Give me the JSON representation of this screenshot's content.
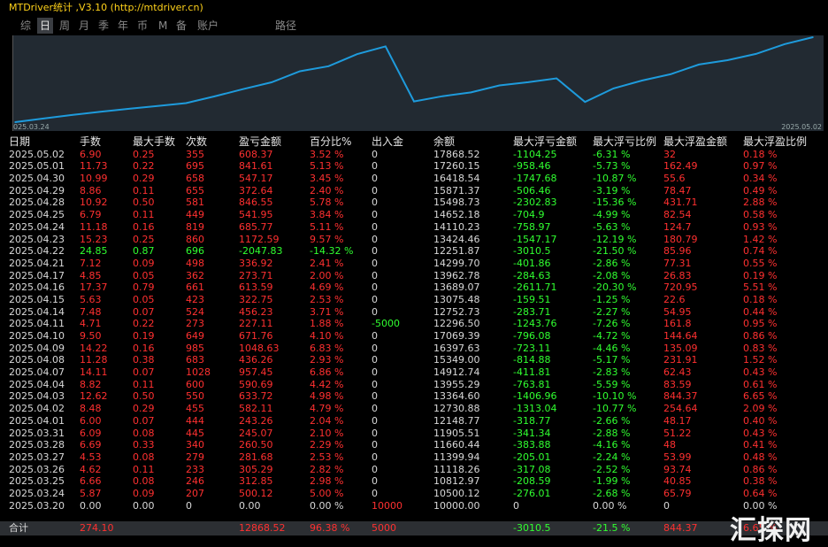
{
  "window": {
    "title": "MTDriver统计 ,V3.10 (http://mtdriver.cn)"
  },
  "tabs": [
    {
      "label": "综",
      "active": false
    },
    {
      "label": "日",
      "active": true
    },
    {
      "label": "周",
      "active": false
    },
    {
      "label": "月",
      "active": false
    },
    {
      "label": "季",
      "active": false
    },
    {
      "label": "年",
      "active": false
    },
    {
      "label": "币",
      "active": false
    },
    {
      "label": "M",
      "active": false
    },
    {
      "label": "备",
      "active": false
    },
    {
      "label": "账户",
      "active": false
    },
    {
      "label": "路径",
      "active": false
    }
  ],
  "chart": {
    "start_label": "025.03.24",
    "end_label": "2025.05.02",
    "line_color": "#1e9bdc"
  },
  "chart_data": {
    "type": "line",
    "x": [
      "2025.03.20",
      "2025.03.24",
      "2025.03.25",
      "2025.03.26",
      "2025.03.27",
      "2025.03.28",
      "2025.03.31",
      "2025.04.01",
      "2025.04.02",
      "2025.04.03",
      "2025.04.04",
      "2025.04.07",
      "2025.04.08",
      "2025.04.09",
      "2025.04.10",
      "2025.04.11",
      "2025.04.14",
      "2025.04.15",
      "2025.04.16",
      "2025.04.17",
      "2025.04.21",
      "2025.04.22",
      "2025.04.23",
      "2025.04.24",
      "2025.04.25",
      "2025.04.28",
      "2025.04.29",
      "2025.04.30",
      "2025.05.01",
      "2025.05.02"
    ],
    "values": [
      10000.0,
      10500.12,
      10812.97,
      11118.26,
      11399.94,
      11660.44,
      11905.51,
      12148.77,
      12730.88,
      13364.6,
      13955.29,
      14912.74,
      15349.0,
      16397.63,
      17069.39,
      12296.5,
      12752.73,
      13075.48,
      13689.07,
      13962.78,
      14299.7,
      12251.87,
      13424.46,
      14110.23,
      14652.18,
      15498.73,
      15871.37,
      16418.54,
      17260.15,
      17868.52
    ]
  },
  "table": {
    "headers": [
      "日期",
      "手数",
      "最大手数",
      "次数",
      "盈亏金额",
      "百分比%",
      "出入金",
      "余额",
      "最大浮亏金额",
      "最大浮亏比例",
      "最大浮盈金额",
      "最大浮盈比例"
    ],
    "rows": [
      [
        "2025.05.02",
        "6.90",
        "0.25",
        "355",
        "608.37",
        "3.52 %",
        "0",
        "17868.52",
        "-1104.25",
        "-6.31 %",
        "32",
        "0.18 %"
      ],
      [
        "2025.05.01",
        "11.73",
        "0.22",
        "695",
        "841.61",
        "5.13 %",
        "0",
        "17260.15",
        "-958.46",
        "-5.73 %",
        "162.49",
        "0.97 %"
      ],
      [
        "2025.04.30",
        "10.99",
        "0.29",
        "658",
        "547.17",
        "3.45 %",
        "0",
        "16418.54",
        "-1747.68",
        "-10.87 %",
        "55.6",
        "0.34 %"
      ],
      [
        "2025.04.29",
        "8.86",
        "0.11",
        "655",
        "372.64",
        "2.40 %",
        "0",
        "15871.37",
        "-506.46",
        "-3.19 %",
        "78.47",
        "0.49 %"
      ],
      [
        "2025.04.28",
        "10.92",
        "0.50",
        "581",
        "846.55",
        "5.78 %",
        "0",
        "15498.73",
        "-2302.83",
        "-15.36 %",
        "431.71",
        "2.88 %"
      ],
      [
        "2025.04.25",
        "6.79",
        "0.11",
        "449",
        "541.95",
        "3.84 %",
        "0",
        "14652.18",
        "-704.9",
        "-4.99 %",
        "82.54",
        "0.58 %"
      ],
      [
        "2025.04.24",
        "11.18",
        "0.16",
        "819",
        "685.77",
        "5.11 %",
        "0",
        "14110.23",
        "-758.97",
        "-5.63 %",
        "124.7",
        "0.93 %"
      ],
      [
        "2025.04.23",
        "15.23",
        "0.25",
        "860",
        "1172.59",
        "9.57 %",
        "0",
        "13424.46",
        "-1547.17",
        "-12.19 %",
        "180.79",
        "1.42 %"
      ],
      [
        "2025.04.22",
        "24.85",
        "0.87",
        "696",
        "-2047.83",
        "-14.32 %",
        "0",
        "12251.87",
        "-3010.5",
        "-21.50 %",
        "85.96",
        "0.74 %"
      ],
      [
        "2025.04.21",
        "7.12",
        "0.09",
        "498",
        "336.92",
        "2.41 %",
        "0",
        "14299.70",
        "-401.86",
        "-2.86 %",
        "77.31",
        "0.55 %"
      ],
      [
        "2025.04.17",
        "4.85",
        "0.05",
        "362",
        "273.71",
        "2.00 %",
        "0",
        "13962.78",
        "-284.63",
        "-2.08 %",
        "26.83",
        "0.19 %"
      ],
      [
        "2025.04.16",
        "17.37",
        "0.79",
        "661",
        "613.59",
        "4.69 %",
        "0",
        "13689.07",
        "-2611.71",
        "-20.30 %",
        "720.95",
        "5.51 %"
      ],
      [
        "2025.04.15",
        "5.63",
        "0.05",
        "423",
        "322.75",
        "2.53 %",
        "0",
        "13075.48",
        "-159.51",
        "-1.25 %",
        "22.6",
        "0.18 %"
      ],
      [
        "2025.04.14",
        "7.48",
        "0.07",
        "524",
        "456.23",
        "3.71 %",
        "0",
        "12752.73",
        "-283.71",
        "-2.27 %",
        "54.95",
        "0.44 %"
      ],
      [
        "2025.04.11",
        "4.71",
        "0.22",
        "273",
        "227.11",
        "1.88 %",
        "-5000",
        "12296.50",
        "-1243.76",
        "-7.26 %",
        "161.8",
        "0.95 %"
      ],
      [
        "2025.04.10",
        "9.50",
        "0.19",
        "649",
        "671.76",
        "4.10 %",
        "0",
        "17069.39",
        "-796.08",
        "-4.72 %",
        "144.64",
        "0.86 %"
      ],
      [
        "2025.04.09",
        "14.22",
        "0.16",
        "985",
        "1048.63",
        "6.83 %",
        "0",
        "16397.63",
        "-723.11",
        "-4.46 %",
        "135.09",
        "0.83 %"
      ],
      [
        "2025.04.08",
        "11.28",
        "0.38",
        "683",
        "436.26",
        "2.93 %",
        "0",
        "15349.00",
        "-814.88",
        "-5.17 %",
        "231.91",
        "1.52 %"
      ],
      [
        "2025.04.07",
        "14.11",
        "0.07",
        "1028",
        "957.45",
        "6.86 %",
        "0",
        "14912.74",
        "-411.81",
        "-2.83 %",
        "62.43",
        "0.43 %"
      ],
      [
        "2025.04.04",
        "8.82",
        "0.11",
        "600",
        "590.69",
        "4.42 %",
        "0",
        "13955.29",
        "-763.81",
        "-5.59 %",
        "83.59",
        "0.61 %"
      ],
      [
        "2025.04.03",
        "12.62",
        "0.50",
        "550",
        "633.72",
        "4.98 %",
        "0",
        "13364.60",
        "-1406.96",
        "-10.10 %",
        "844.37",
        "6.65 %"
      ],
      [
        "2025.04.02",
        "8.48",
        "0.29",
        "455",
        "582.11",
        "4.79 %",
        "0",
        "12730.88",
        "-1313.04",
        "-10.77 %",
        "254.64",
        "2.09 %"
      ],
      [
        "2025.04.01",
        "6.00",
        "0.07",
        "444",
        "243.26",
        "2.04 %",
        "0",
        "12148.77",
        "-318.77",
        "-2.66 %",
        "48.17",
        "0.40 %"
      ],
      [
        "2025.03.31",
        "6.09",
        "0.08",
        "445",
        "245.07",
        "2.10 %",
        "0",
        "11905.51",
        "-341.34",
        "-2.88 %",
        "51.22",
        "0.43 %"
      ],
      [
        "2025.03.28",
        "6.69",
        "0.33",
        "340",
        "260.50",
        "2.29 %",
        "0",
        "11660.44",
        "-383.88",
        "-4.16 %",
        "48",
        "0.41 %"
      ],
      [
        "2025.03.27",
        "4.53",
        "0.08",
        "279",
        "281.68",
        "2.53 %",
        "0",
        "11399.94",
        "-205.01",
        "-2.24 %",
        "53.99",
        "0.48 %"
      ],
      [
        "2025.03.26",
        "4.62",
        "0.11",
        "233",
        "305.29",
        "2.82 %",
        "0",
        "11118.26",
        "-317.08",
        "-2.52 %",
        "93.74",
        "0.86 %"
      ],
      [
        "2025.03.25",
        "6.66",
        "0.08",
        "246",
        "312.85",
        "2.98 %",
        "0",
        "10812.97",
        "-208.59",
        "-1.99 %",
        "40.85",
        "0.38 %"
      ],
      [
        "2025.03.24",
        "5.87",
        "0.09",
        "207",
        "500.12",
        "5.00 %",
        "0",
        "10500.12",
        "-276.01",
        "-2.68 %",
        "65.79",
        "0.64 %"
      ],
      [
        "2025.03.20",
        "0.00",
        "0.00",
        "0",
        "0.00",
        "0.00 %",
        "10000",
        "10000.00",
        "0",
        "0.00 %",
        "0",
        "0.00 %"
      ]
    ],
    "total": [
      "合计",
      "274.10",
      "",
      "",
      "12868.52",
      "96.38 %",
      "5000",
      "",
      "-3010.5",
      "-21.5 %",
      "844.37",
      "6.65 %"
    ]
  },
  "watermark": "汇探网"
}
